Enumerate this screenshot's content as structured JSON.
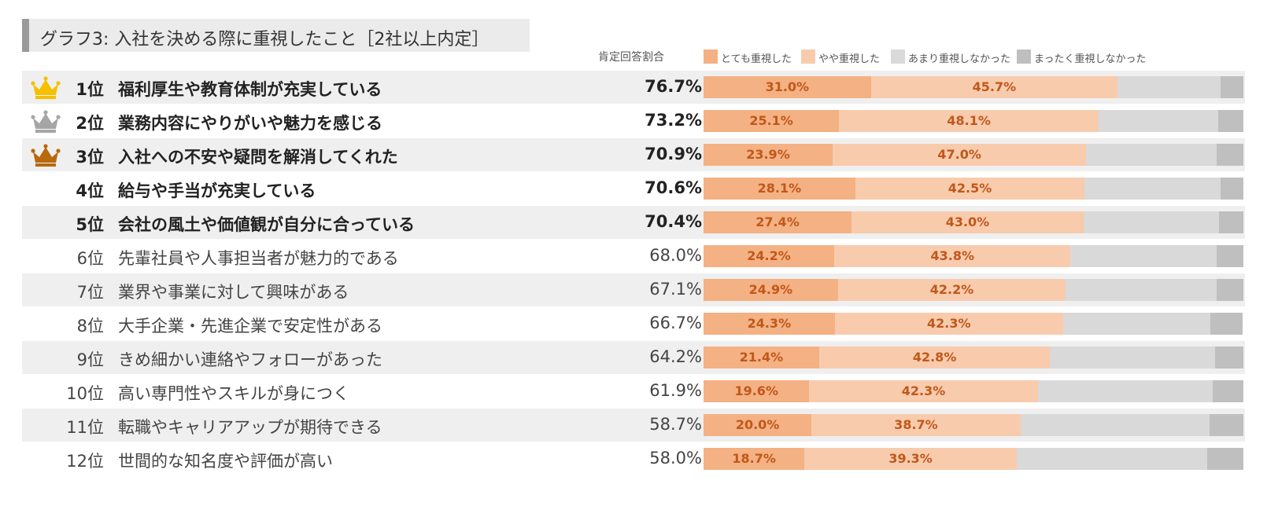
{
  "title": "グラフ3: 入社を決める際に重視したこと［2社以上内定］",
  "metric_header": "肯定回答割合",
  "colors": {
    "very": "#f4b183",
    "somewhat": "#f8cbad",
    "notmuch": "#d9d9d9",
    "notatall": "#bfbfbf",
    "gold": "#f5c000",
    "silver": "#a6a6a6",
    "bronze": "#b8680d"
  },
  "legend": [
    {
      "label": "とても重視した",
      "color": "#f4b183"
    },
    {
      "label": "やや重視した",
      "color": "#f8cbad"
    },
    {
      "label": "あまり重視しなかった",
      "color": "#d9d9d9"
    },
    {
      "label": "まったく重視しなかった",
      "color": "#bfbfbf"
    }
  ],
  "chart_data": {
    "type": "bar",
    "orientation": "horizontal",
    "stacked": true,
    "categories": [
      "福利厚生や教育体制が充実している",
      "業務内容にやりがいや魅力を感じる",
      "入社への不安や疑問を解消してくれた",
      "給与や手当が充実している",
      "会社の風土や価値観が自分に合っている",
      "先輩社員や人事担当者が魅力的である",
      "業界や事業に対して興味がある",
      "大手企業・先進企業で安定性がある",
      "きめ細かい連絡やフォローがあった",
      "高い専門性やスキルが身につく",
      "転職やキャリアアップが期待できる",
      "世間的な知名度や評価が高い"
    ],
    "ranks": [
      "1位",
      "2位",
      "3位",
      "4位",
      "5位",
      "6位",
      "7位",
      "8位",
      "9位",
      "10位",
      "11位",
      "12位"
    ],
    "positive_totals": [
      "76.7%",
      "73.2%",
      "70.9%",
      "70.6%",
      "70.4%",
      "68.0%",
      "67.1%",
      "66.7%",
      "64.2%",
      "61.9%",
      "58.7%",
      "58.0%"
    ],
    "series": [
      {
        "name": "とても重視した",
        "values": [
          31.0,
          25.1,
          23.9,
          28.1,
          27.4,
          24.2,
          24.9,
          24.3,
          21.4,
          19.6,
          20.0,
          18.7
        ],
        "labels": [
          "31.0%",
          "25.1%",
          "23.9%",
          "28.1%",
          "27.4%",
          "24.2%",
          "24.9%",
          "24.3%",
          "21.4%",
          "19.6%",
          "20.0%",
          "18.7%"
        ]
      },
      {
        "name": "やや重視した",
        "values": [
          45.7,
          48.1,
          47.0,
          42.5,
          43.0,
          43.8,
          42.2,
          42.3,
          42.8,
          42.3,
          38.7,
          39.3
        ],
        "labels": [
          "45.7%",
          "48.1%",
          "47.0%",
          "42.5%",
          "43.0%",
          "43.8%",
          "42.2%",
          "42.3%",
          "42.8%",
          "42.3%",
          "38.7%",
          "39.3%"
        ]
      },
      {
        "name": "あまり重視しなかった",
        "values": [
          19.1,
          22.2,
          24.1,
          25.2,
          25.1,
          27.1,
          27.9,
          27.3,
          30.6,
          32.4,
          35.0,
          35.3
        ]
      },
      {
        "name": "まったく重視しなかった",
        "values": [
          4.2,
          4.6,
          5.0,
          4.2,
          4.5,
          4.9,
          5.0,
          6.0,
          5.2,
          5.7,
          6.3,
          6.7
        ]
      }
    ],
    "xlim": [
      0,
      100
    ],
    "legend_position": "top-right",
    "grid": false
  }
}
